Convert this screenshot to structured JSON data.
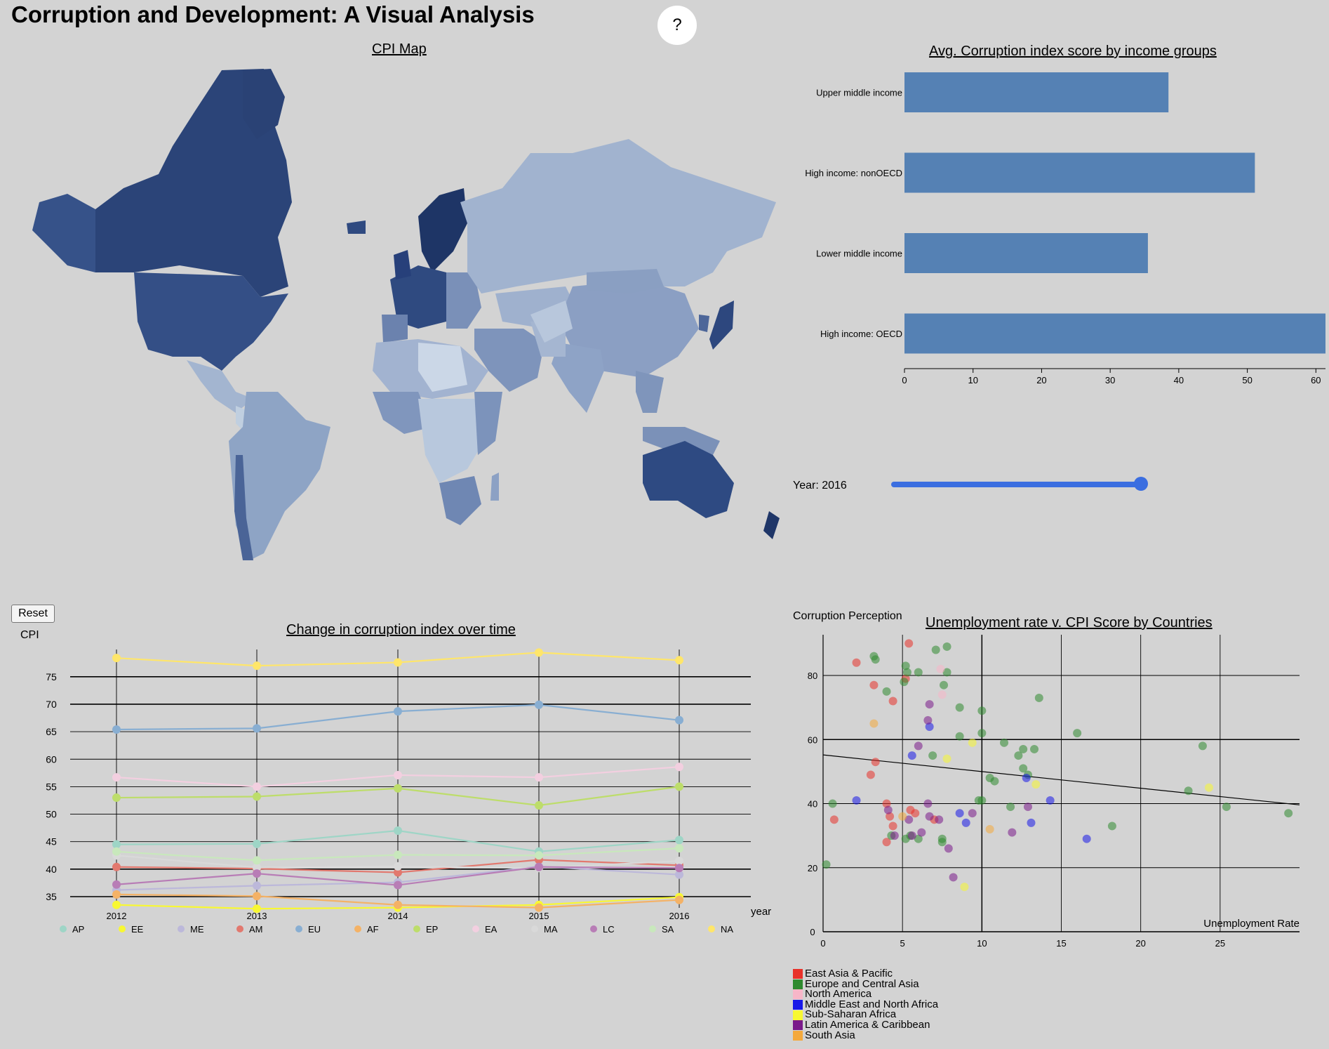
{
  "header": {
    "title": "Corruption and Development: A Visual Analysis",
    "help_label": "?"
  },
  "map": {
    "title": "CPI Map"
  },
  "bar": {
    "title": "Avg. Corruption index score by income groups",
    "color": "#5581b4"
  },
  "slider": {
    "label": "Year: 2016",
    "value": 2016,
    "fraction": 1.0
  },
  "line": {
    "title": "Change in corruption index over time",
    "ylabel": "CPI",
    "xlabel": "year",
    "reset_label": "Reset"
  },
  "scatter": {
    "title": "Unemployment rate v. CPI Score by Countries",
    "ylabel": "Corruption Perception",
    "xlabel": "Unemployment Rate"
  },
  "legend": {
    "items": [
      {
        "label": "East Asia & Pacific",
        "color": "#e8322a"
      },
      {
        "label": "Europe and Central Asia",
        "color": "#2f8a2f"
      },
      {
        "label": "North America",
        "color": "#f7b6c8"
      },
      {
        "label": "Middle East and North Africa",
        "color": "#1818e8"
      },
      {
        "label": "Sub-Saharan Africa",
        "color": "#f8f832"
      },
      {
        "label": "Latin America & Caribbean",
        "color": "#7a1a8a"
      },
      {
        "label": "South Asia",
        "color": "#f4a93c"
      }
    ]
  },
  "chart_data": [
    {
      "type": "bar",
      "title": "Avg. Corruption index score by income groups",
      "categories": [
        "Upper middle income",
        "High income: nonOECD",
        "Lower middle income",
        "High income: OECD"
      ],
      "values": [
        38.5,
        51.1,
        35.5,
        61.4
      ],
      "xlim": [
        0,
        61.4
      ],
      "xticks": [
        0,
        10,
        20,
        30,
        40,
        50,
        60
      ]
    },
    {
      "type": "line",
      "title": "Change in corruption index over time",
      "ylabel": "CPI",
      "xlabel": "year",
      "categories": [
        "2012",
        "2013",
        "2014",
        "2015",
        "2016"
      ],
      "ylim": [
        33,
        80
      ],
      "yticks": [
        35,
        40,
        45,
        50,
        55,
        60,
        65,
        70,
        75
      ],
      "grid": true,
      "legend_position": "bottom",
      "series": [
        {
          "name": "AP",
          "color": "#9ed5c6",
          "values": [
            44.5,
            44.6,
            47.0,
            43.2,
            45.3
          ]
        },
        {
          "name": "EE",
          "color": "#f8f832",
          "values": [
            33.5,
            32.8,
            33.0,
            33.5,
            34.9
          ]
        },
        {
          "name": "ME",
          "color": "#bcb8da",
          "values": [
            36.2,
            37.0,
            37.6,
            40.5,
            39.0
          ]
        },
        {
          "name": "AM",
          "color": "#e2786e",
          "values": [
            40.4,
            40.1,
            39.4,
            41.7,
            40.7
          ]
        },
        {
          "name": "EU",
          "color": "#88aed2",
          "values": [
            65.4,
            65.6,
            68.7,
            69.9,
            67.1
          ]
        },
        {
          "name": "AF",
          "color": "#f4b266",
          "values": [
            35.4,
            35.1,
            33.5,
            33.0,
            34.4
          ]
        },
        {
          "name": "EP",
          "color": "#bddd6a",
          "values": [
            53.0,
            53.2,
            54.7,
            51.6,
            55.0
          ]
        },
        {
          "name": "EA",
          "color": "#f3cfe0",
          "values": [
            56.7,
            55.0,
            57.1,
            56.7,
            58.6
          ]
        },
        {
          "name": "MA",
          "color": "#d9d9d9",
          "values": [
            42.5,
            40.3,
            40.5,
            40.2,
            41.5
          ]
        },
        {
          "name": "LC",
          "color": "#b87db6",
          "values": [
            37.2,
            39.2,
            37.1,
            40.4,
            40.2
          ]
        },
        {
          "name": "SA",
          "color": "#c8e8bc",
          "values": [
            43.2,
            41.6,
            42.6,
            42.5,
            43.8
          ]
        },
        {
          "name": "NA",
          "color": "#ffe66a",
          "values": [
            78.4,
            77.0,
            77.6,
            79.4,
            78.0
          ]
        }
      ]
    },
    {
      "type": "scatter",
      "title": "Unemployment rate v. CPI Score by Countries",
      "xlabel": "Unemployment Rate",
      "ylabel": "Corruption Perception",
      "xlim": [
        0,
        30
      ],
      "ylim": [
        0,
        93
      ],
      "xticks": [
        0,
        5,
        10,
        15,
        20,
        25
      ],
      "yticks": [
        0,
        20,
        40,
        60,
        80
      ],
      "grid": true,
      "trendline": [
        [
          0,
          55.2
        ],
        [
          30,
          39.6
        ]
      ],
      "series": [
        {
          "name": "East Asia & Pacific",
          "color": "#e8322a",
          "points": [
            [
              2.1,
              84
            ],
            [
              3.2,
              77
            ],
            [
              4.4,
              72
            ],
            [
              5.4,
              90
            ],
            [
              5.2,
              79
            ],
            [
              3.3,
              53
            ],
            [
              3.0,
              49
            ],
            [
              4.0,
              40
            ],
            [
              5.5,
              38
            ],
            [
              5.8,
              37
            ],
            [
              4.4,
              33
            ],
            [
              4.0,
              28
            ],
            [
              7.0,
              35
            ],
            [
              0.7,
              35
            ],
            [
              4.2,
              36
            ]
          ]
        },
        {
          "name": "Europe and Central Asia",
          "color": "#2f8a2f",
          "points": [
            [
              3.3,
              85
            ],
            [
              3.2,
              86
            ],
            [
              5.2,
              83
            ],
            [
              5.3,
              81
            ],
            [
              6.0,
              81
            ],
            [
              7.1,
              88
            ],
            [
              7.8,
              89
            ],
            [
              7.8,
              81
            ],
            [
              7.6,
              77
            ],
            [
              4.0,
              75
            ],
            [
              5.1,
              78
            ],
            [
              8.6,
              70
            ],
            [
              10.0,
              69
            ],
            [
              10.0,
              62
            ],
            [
              8.6,
              61
            ],
            [
              6.9,
              55
            ],
            [
              11.4,
              59
            ],
            [
              12.6,
              57
            ],
            [
              13.3,
              57
            ],
            [
              12.3,
              55
            ],
            [
              13.6,
              73
            ],
            [
              16.0,
              62
            ],
            [
              10.5,
              48
            ],
            [
              10.8,
              47
            ],
            [
              12.6,
              51
            ],
            [
              12.9,
              49
            ],
            [
              9.8,
              41
            ],
            [
              10.0,
              41
            ],
            [
              11.8,
              39
            ],
            [
              5.2,
              29
            ],
            [
              6.0,
              29
            ],
            [
              5.5,
              30
            ],
            [
              7.5,
              29
            ],
            [
              7.5,
              28
            ],
            [
              18.2,
              33
            ],
            [
              23.0,
              44
            ],
            [
              23.9,
              58
            ],
            [
              25.4,
              39
            ],
            [
              29.3,
              37
            ],
            [
              0.2,
              21
            ],
            [
              0.6,
              40
            ],
            [
              4.3,
              30
            ]
          ]
        },
        {
          "name": "North America",
          "color": "#f7b6c8",
          "points": [
            [
              7.4,
              82
            ],
            [
              7.5,
              74
            ]
          ]
        },
        {
          "name": "Middle East and North Africa",
          "color": "#1818e8",
          "points": [
            [
              2.1,
              41
            ],
            [
              5.6,
              55
            ],
            [
              6.7,
              64
            ],
            [
              12.8,
              48
            ],
            [
              14.3,
              41
            ],
            [
              8.6,
              37
            ],
            [
              9.0,
              34
            ],
            [
              13.1,
              34
            ],
            [
              16.6,
              29
            ]
          ]
        },
        {
          "name": "Sub-Saharan Africa",
          "color": "#f8f832",
          "points": [
            [
              7.8,
              54
            ],
            [
              9.4,
              59
            ],
            [
              13.4,
              46
            ],
            [
              24.3,
              45
            ],
            [
              8.9,
              14
            ]
          ]
        },
        {
          "name": "Latin America & Caribbean",
          "color": "#7a1a8a",
          "points": [
            [
              6.7,
              71
            ],
            [
              6.6,
              66
            ],
            [
              6.0,
              58
            ],
            [
              4.1,
              38
            ],
            [
              6.6,
              40
            ],
            [
              6.7,
              36
            ],
            [
              7.3,
              35
            ],
            [
              5.4,
              35
            ],
            [
              9.4,
              37
            ],
            [
              12.9,
              39
            ],
            [
              11.9,
              31
            ],
            [
              4.5,
              30
            ],
            [
              6.2,
              31
            ],
            [
              8.2,
              17
            ],
            [
              7.9,
              26
            ],
            [
              5.6,
              30
            ]
          ]
        },
        {
          "name": "South Asia",
          "color": "#f4a93c",
          "points": [
            [
              3.2,
              65
            ],
            [
              5.0,
              36
            ],
            [
              10.5,
              32
            ]
          ]
        }
      ]
    }
  ]
}
